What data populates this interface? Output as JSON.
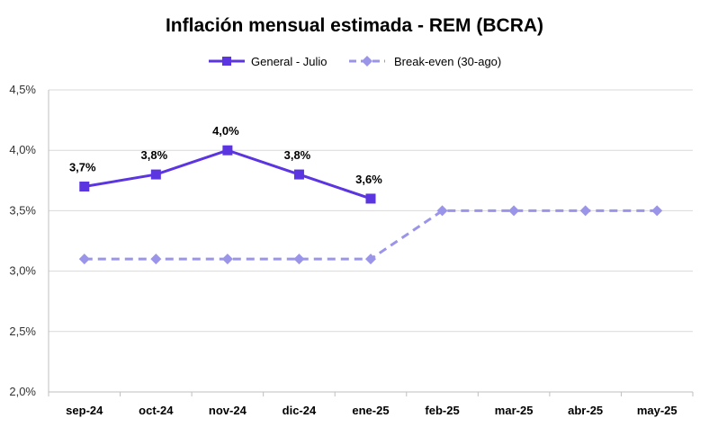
{
  "chart_data": {
    "type": "line",
    "title": "Inflación mensual estimada - REM (BCRA)",
    "categories": [
      "sep-24",
      "oct-24",
      "nov-24",
      "dic-24",
      "ene-25",
      "feb-25",
      "mar-25",
      "abr-25",
      "may-25"
    ],
    "y_ticks": [
      "2,0%",
      "2,5%",
      "3,0%",
      "3,5%",
      "4,0%",
      "4,5%"
    ],
    "ylim": [
      2.0,
      4.5
    ],
    "grid": true,
    "legend_position": "top",
    "series": [
      {
        "name": "General - Julio",
        "values": [
          3.7,
          3.8,
          4.0,
          3.8,
          3.6,
          null,
          null,
          null,
          null
        ],
        "data_labels": [
          "3,7%",
          "3,8%",
          "4,0%",
          "3,8%",
          "3,6%"
        ],
        "color": "#5B35E0",
        "marker": "square",
        "line_style": "solid"
      },
      {
        "name": "Break-even (30-ago)",
        "values": [
          3.1,
          3.1,
          3.1,
          3.1,
          3.1,
          3.5,
          3.5,
          3.5,
          3.5
        ],
        "color": "#9B95EA",
        "marker": "diamond",
        "line_style": "dashed"
      }
    ]
  }
}
